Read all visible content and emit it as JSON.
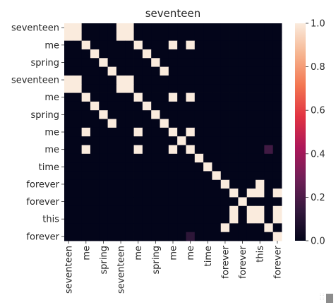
{
  "chart_data": {
    "type": "heatmap",
    "title": "seventeen",
    "xlabel": "",
    "ylabel": "",
    "x_labels": [
      "seventeen",
      "me",
      "spring",
      "seventeen",
      "me",
      "spring",
      "me",
      "me",
      "time",
      "forever",
      "forever",
      "this",
      "forever"
    ],
    "y_labels": [
      "seventeen",
      "me",
      "spring",
      "seventeen",
      "me",
      "spring",
      "me",
      "me",
      "time",
      "forever",
      "forever",
      "this",
      "forever"
    ],
    "x_tokens": [
      "seventeen",
      "",
      "me",
      "",
      "spring",
      "",
      "seventeen",
      "",
      "me",
      "",
      "spring",
      "",
      "me",
      "",
      "me",
      "",
      "time",
      "",
      "forever",
      "",
      "forever",
      "",
      "this",
      "",
      "forever"
    ],
    "y_tokens": [
      "seventeen",
      "",
      "me",
      "",
      "spring",
      "",
      "seventeen",
      "",
      "me",
      "",
      "spring",
      "",
      "me",
      "",
      "me",
      "",
      "time",
      "",
      "forever",
      "",
      "forever",
      "",
      "this",
      "",
      "forever"
    ],
    "values": [
      [
        1,
        1,
        0,
        0,
        0,
        0,
        1,
        1,
        0,
        0,
        0,
        0,
        0,
        0,
        0,
        0,
        0,
        0,
        0,
        0,
        0,
        0,
        0,
        0,
        0
      ],
      [
        1,
        1,
        0,
        0,
        0,
        0,
        1,
        1,
        0,
        0,
        0,
        0,
        0,
        0,
        0,
        0,
        0,
        0,
        0,
        0,
        0,
        0,
        0,
        0,
        0
      ],
      [
        0,
        0,
        1,
        0,
        0,
        0,
        0,
        0,
        1,
        0,
        0,
        0,
        1,
        0,
        1,
        0,
        0,
        0,
        0,
        0,
        0,
        0,
        0,
        0,
        0
      ],
      [
        0,
        0,
        0,
        1,
        0,
        0,
        0,
        0,
        0,
        1,
        0,
        0,
        0,
        0,
        0,
        0,
        0,
        0,
        0,
        0,
        0,
        0,
        0,
        0,
        0
      ],
      [
        0,
        0,
        0,
        0,
        1,
        0,
        0,
        0,
        0,
        0,
        1,
        0,
        0,
        0,
        0,
        0,
        0,
        0,
        0,
        0,
        0,
        0,
        0,
        0,
        0
      ],
      [
        0,
        0,
        0,
        0,
        0,
        1,
        0,
        0,
        0,
        0,
        0,
        1,
        0,
        0,
        0,
        0,
        0,
        0,
        0,
        0,
        0,
        0,
        0,
        0,
        0
      ],
      [
        1,
        1,
        0,
        0,
        0,
        0,
        1,
        1,
        0,
        0,
        0,
        0,
        0,
        0,
        0,
        0,
        0,
        0,
        0,
        0,
        0,
        0,
        0,
        0,
        0
      ],
      [
        1,
        1,
        0,
        0,
        0,
        0,
        1,
        1,
        0,
        0,
        0,
        0,
        0,
        0,
        0,
        0,
        0,
        0,
        0,
        0,
        0,
        0,
        0,
        0,
        0
      ],
      [
        0,
        0,
        1,
        0,
        0,
        0,
        0,
        0,
        1,
        0,
        0,
        0,
        1,
        0,
        1,
        0,
        0,
        0,
        0,
        0,
        0,
        0,
        0,
        0,
        0
      ],
      [
        0,
        0,
        0,
        1,
        0,
        0,
        0,
        0,
        0,
        1,
        0,
        0,
        0,
        0,
        0,
        0,
        0,
        0,
        0,
        0,
        0,
        0,
        0,
        0,
        0
      ],
      [
        0,
        0,
        0,
        0,
        1,
        0,
        0,
        0,
        0,
        0,
        1,
        0,
        0,
        0,
        0,
        0,
        0,
        0,
        0,
        0,
        0,
        0,
        0,
        0,
        0
      ],
      [
        0,
        0,
        0,
        0,
        0,
        1,
        0,
        0,
        0,
        0,
        0,
        1,
        0,
        0,
        0,
        0,
        0,
        0,
        0,
        0,
        0,
        0,
        0,
        0,
        0
      ],
      [
        0,
        0,
        1,
        0,
        0,
        0,
        0,
        0,
        1,
        0,
        0,
        0,
        1,
        0,
        1,
        0,
        0,
        0,
        0,
        0,
        0,
        0,
        0,
        0,
        0
      ],
      [
        0,
        0,
        0,
        0,
        0,
        0,
        0,
        0,
        0,
        0,
        0,
        0,
        0,
        1,
        0,
        0,
        0,
        0,
        0,
        0,
        0,
        0,
        0,
        0,
        0
      ],
      [
        0,
        0,
        1,
        0,
        0,
        0,
        0,
        0,
        1,
        0,
        0,
        0,
        1,
        0,
        1,
        0,
        0,
        0,
        0,
        0,
        0,
        0,
        0,
        0.17,
        0
      ],
      [
        0,
        0,
        0,
        0,
        0,
        0,
        0,
        0,
        0,
        0,
        0,
        0,
        0,
        0,
        0,
        1,
        0,
        0,
        0,
        0,
        0,
        0,
        0,
        0,
        0
      ],
      [
        0,
        0,
        0,
        0,
        0,
        0,
        0,
        0,
        0,
        0,
        0,
        0,
        0,
        0,
        0,
        0,
        1,
        0,
        0,
        0,
        0,
        0,
        0,
        0,
        0
      ],
      [
        0,
        0,
        0,
        0,
        0,
        0,
        0,
        0,
        0,
        0,
        0,
        0,
        0,
        0,
        0,
        0,
        0,
        1,
        0,
        0,
        0,
        0,
        0,
        0,
        0
      ],
      [
        0,
        0,
        0,
        0,
        0,
        0,
        0,
        0,
        0,
        0,
        0,
        0,
        0,
        0,
        0,
        0,
        0,
        0,
        1,
        0,
        0,
        0,
        1,
        0,
        0
      ],
      [
        0,
        0,
        0,
        0,
        0,
        0,
        0,
        0,
        0,
        0,
        0,
        0,
        0,
        0,
        0,
        0,
        0,
        0,
        0,
        1,
        0,
        1,
        1,
        0,
        1
      ],
      [
        0,
        0,
        0,
        0,
        0,
        0,
        0,
        0,
        0,
        0,
        0,
        0,
        0,
        0,
        0,
        0,
        0,
        0,
        0,
        0,
        1,
        0,
        0,
        0,
        0
      ],
      [
        0,
        0,
        0,
        0,
        0,
        0,
        0,
        0,
        0,
        0,
        0,
        0,
        0,
        0,
        0,
        0,
        0,
        0,
        0,
        1,
        0,
        1,
        1,
        0,
        1
      ],
      [
        0,
        0,
        0,
        0,
        0,
        0,
        0,
        0,
        0,
        0,
        0,
        0,
        0,
        0,
        0,
        0,
        0,
        0,
        0,
        1,
        0,
        1,
        1,
        0,
        1
      ],
      [
        0,
        0,
        0,
        0,
        0,
        0,
        0,
        0,
        0,
        0,
        0,
        0,
        0,
        0,
        0,
        0,
        0,
        0,
        1,
        0,
        0,
        0,
        0,
        1,
        0
      ],
      [
        0,
        0,
        0,
        0,
        0,
        0,
        0,
        0,
        0,
        0,
        0,
        0,
        0,
        0,
        0.12,
        0,
        0,
        0,
        0,
        0,
        0,
        0,
        0,
        0,
        1
      ]
    ],
    "colorbar": {
      "vmin": 0,
      "vmax": 1,
      "ticks": [
        0.0,
        0.2,
        0.4,
        0.6,
        0.8,
        1.0
      ],
      "tick_labels": [
        "0.0",
        "0.2",
        "0.4",
        "0.6",
        "0.8",
        "1.0"
      ],
      "colormap": "rocket",
      "stops": [
        "#03051a",
        "#35193e",
        "#701f57",
        "#ad1759",
        "#e13342",
        "#f37651",
        "#f6b48f",
        "#faebdd"
      ]
    }
  }
}
